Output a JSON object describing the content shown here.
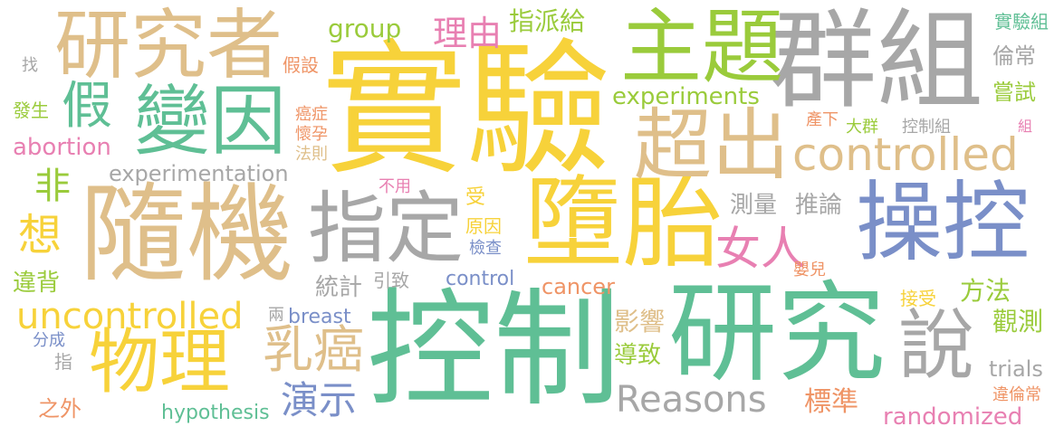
{
  "palette": {
    "yellow": "#f7d23a",
    "gray": "#a7a7a7",
    "tan": "#dfbf8a",
    "green": "#5fbf95",
    "lime": "#9acb3b",
    "blue": "#7a8fc8",
    "pink": "#e880b2",
    "orange": "#ef9466"
  },
  "words": [
    {
      "text": "實驗",
      "color": "yellow"
    },
    {
      "text": "控制",
      "color": "green"
    },
    {
      "text": "群組",
      "color": "gray"
    },
    {
      "text": "研究",
      "color": "green"
    },
    {
      "text": "隨機",
      "color": "tan"
    },
    {
      "text": "墮胎",
      "color": "yellow"
    },
    {
      "text": "主題",
      "color": "lime"
    },
    {
      "text": "研究者",
      "color": "tan"
    },
    {
      "text": "變因",
      "color": "green"
    },
    {
      "text": "操控",
      "color": "blue"
    },
    {
      "text": "指定",
      "color": "gray"
    },
    {
      "text": "超出",
      "color": "tan"
    },
    {
      "text": "物理",
      "color": "yellow"
    },
    {
      "text": "說",
      "color": "gray"
    },
    {
      "text": "乳癌",
      "color": "tan"
    },
    {
      "text": "假",
      "color": "green"
    },
    {
      "text": "女人",
      "color": "pink"
    },
    {
      "text": "controlled",
      "color": "tan"
    },
    {
      "text": "uncontrolled",
      "color": "yellow"
    },
    {
      "text": "Reasons",
      "color": "gray"
    },
    {
      "text": "想",
      "color": "yellow"
    },
    {
      "text": "演示",
      "color": "blue"
    },
    {
      "text": "experiments",
      "color": "lime"
    },
    {
      "text": "experimentation",
      "color": "gray"
    },
    {
      "text": "理由",
      "color": "pink"
    },
    {
      "text": "非",
      "color": "lime"
    },
    {
      "text": "group",
      "color": "lime"
    },
    {
      "text": "randomized",
      "color": "pink"
    },
    {
      "text": "指派給",
      "color": "lime"
    },
    {
      "text": "abortion",
      "color": "pink"
    },
    {
      "text": "cancer",
      "color": "orange"
    },
    {
      "text": "control",
      "color": "blue"
    },
    {
      "text": "breast",
      "color": "blue"
    },
    {
      "text": "trials",
      "color": "gray"
    },
    {
      "text": "hypothesis",
      "color": "green"
    },
    {
      "text": "方法",
      "color": "lime"
    },
    {
      "text": "觀測",
      "color": "lime"
    },
    {
      "text": "標準",
      "color": "orange"
    },
    {
      "text": "影響",
      "color": "tan"
    },
    {
      "text": "導致",
      "color": "lime"
    },
    {
      "text": "統計",
      "color": "gray"
    },
    {
      "text": "違背",
      "color": "lime"
    },
    {
      "text": "測量",
      "color": "gray"
    },
    {
      "text": "推論",
      "color": "gray"
    },
    {
      "text": "倫常",
      "color": "gray"
    },
    {
      "text": "嘗試",
      "color": "lime"
    },
    {
      "text": "實驗組",
      "color": "green"
    },
    {
      "text": "違倫常",
      "color": "orange"
    },
    {
      "text": "之外",
      "color": "orange"
    },
    {
      "text": "發生",
      "color": "lime"
    },
    {
      "text": "假設",
      "color": "orange"
    },
    {
      "text": "癌症",
      "color": "orange"
    },
    {
      "text": "懷孕",
      "color": "orange"
    },
    {
      "text": "法則",
      "color": "tan"
    },
    {
      "text": "不用",
      "color": "pink"
    },
    {
      "text": "受",
      "color": "yellow"
    },
    {
      "text": "原因",
      "color": "yellow"
    },
    {
      "text": "檢查",
      "color": "blue"
    },
    {
      "text": "引致",
      "color": "gray"
    },
    {
      "text": "嬰兒",
      "color": "orange"
    },
    {
      "text": "接受",
      "color": "yellow"
    },
    {
      "text": "產下",
      "color": "orange"
    },
    {
      "text": "大群",
      "color": "lime"
    },
    {
      "text": "控制組",
      "color": "gray"
    },
    {
      "text": "組",
      "color": "pink"
    },
    {
      "text": "兩",
      "color": "gray"
    },
    {
      "text": "分成",
      "color": "blue"
    },
    {
      "text": "指",
      "color": "gray"
    },
    {
      "text": "找",
      "color": "gray"
    }
  ]
}
